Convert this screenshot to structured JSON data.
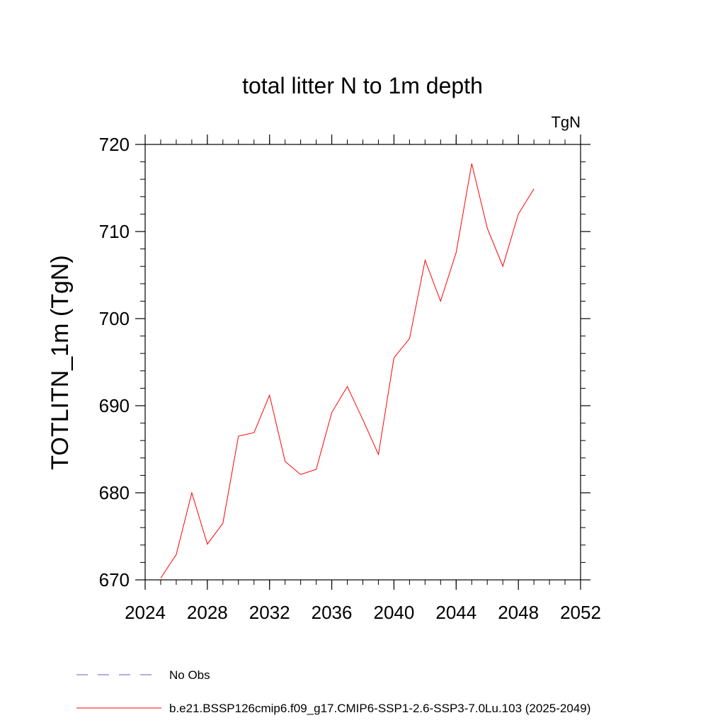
{
  "chart_data": {
    "type": "line",
    "title": "total litter N to 1m depth",
    "units_label": "TgN",
    "ylabel": "TOTLITN_1m  (TgN)",
    "xlabel": "",
    "xlim": [
      2024,
      2052
    ],
    "ylim": [
      670,
      720
    ],
    "x_ticks": [
      2024,
      2028,
      2032,
      2036,
      2040,
      2044,
      2048,
      2052
    ],
    "x_tick_labels": [
      "2024",
      "2028",
      "2032",
      "2036",
      "2040",
      "2044",
      "2048",
      "2052"
    ],
    "y_ticks": [
      670,
      680,
      690,
      700,
      710,
      720
    ],
    "y_tick_labels": [
      "670",
      "680",
      "690",
      "700",
      "710",
      "720"
    ],
    "grid": false,
    "legend_position": "bottom",
    "series": [
      {
        "name": "b.e21.BSSP126cmip6.f09_g17.CMIP6-SSP1-2.6-SSP3-7.0Lu.103 (2025-2049)",
        "color": "#ff0000",
        "line_style": "solid",
        "x": [
          2025,
          2026,
          2027,
          2028,
          2029,
          2030,
          2031,
          2032,
          2033,
          2034,
          2035,
          2036,
          2037,
          2038,
          2039,
          2040,
          2041,
          2042,
          2043,
          2044,
          2045,
          2046,
          2047,
          2048,
          2049
        ],
        "y": [
          670.2,
          672.9,
          680.0,
          674.1,
          676.5,
          686.5,
          686.9,
          691.2,
          683.6,
          682.1,
          682.7,
          689.2,
          692.2,
          688.4,
          684.4,
          695.5,
          697.7,
          706.7,
          702.0,
          707.6,
          717.8,
          710.4,
          706.0,
          712.0,
          714.9
        ]
      }
    ],
    "legend": [
      {
        "label": "No Obs",
        "color": "#6a5acd",
        "line_style": "dashed"
      },
      {
        "label": "b.e21.BSSP126cmip6.f09_g17.CMIP6-SSP1-2.6-SSP3-7.0Lu.103 (2025-2049)",
        "color": "#ff0000",
        "line_style": "solid"
      }
    ]
  }
}
